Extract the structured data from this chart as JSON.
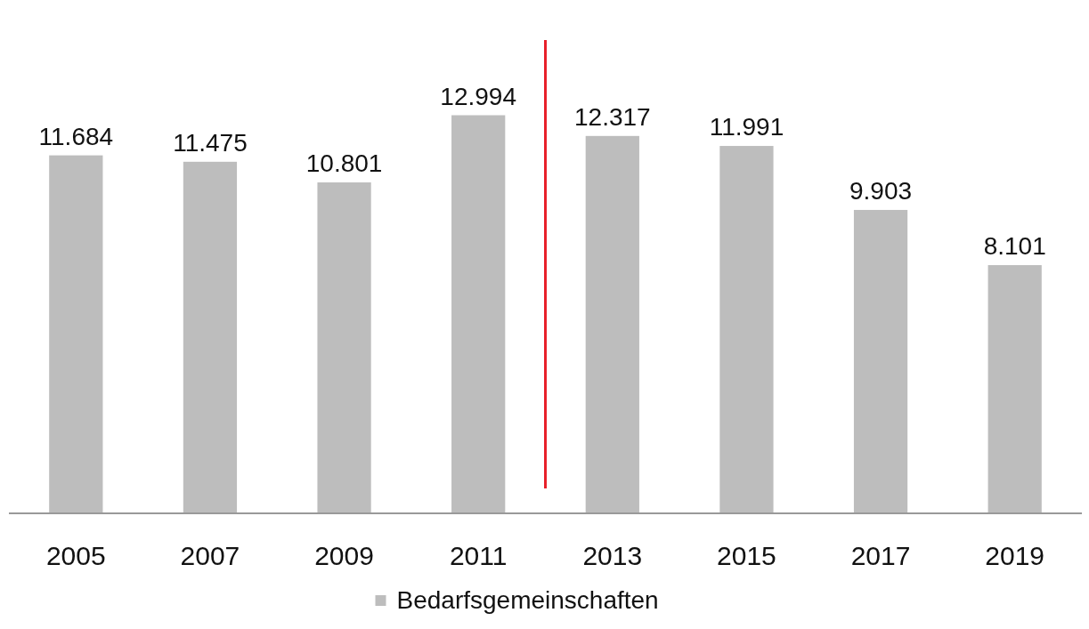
{
  "chart_data": {
    "type": "bar",
    "x": [
      2005,
      2007,
      2009,
      2011,
      2013,
      2015,
      2017,
      2019
    ],
    "xlim": [
      2004,
      2020
    ],
    "xticks": [
      2005,
      2007,
      2009,
      2011,
      2013,
      2015,
      2017,
      2019
    ],
    "series": [
      {
        "name": "Bedarfsgemeinschaften",
        "color": "#bdbdbd",
        "values": [
          11684,
          11475,
          10801,
          12994,
          12317,
          11991,
          9903,
          8101
        ],
        "value_labels": [
          "11.684",
          "11.475",
          "10.801",
          "12.994",
          "12.317",
          "11.991",
          "9.903",
          "8.101"
        ]
      }
    ],
    "ref_lines": [
      {
        "axis": "x",
        "value": 2012,
        "color": "#e8202a"
      }
    ],
    "legend": "bottom"
  }
}
